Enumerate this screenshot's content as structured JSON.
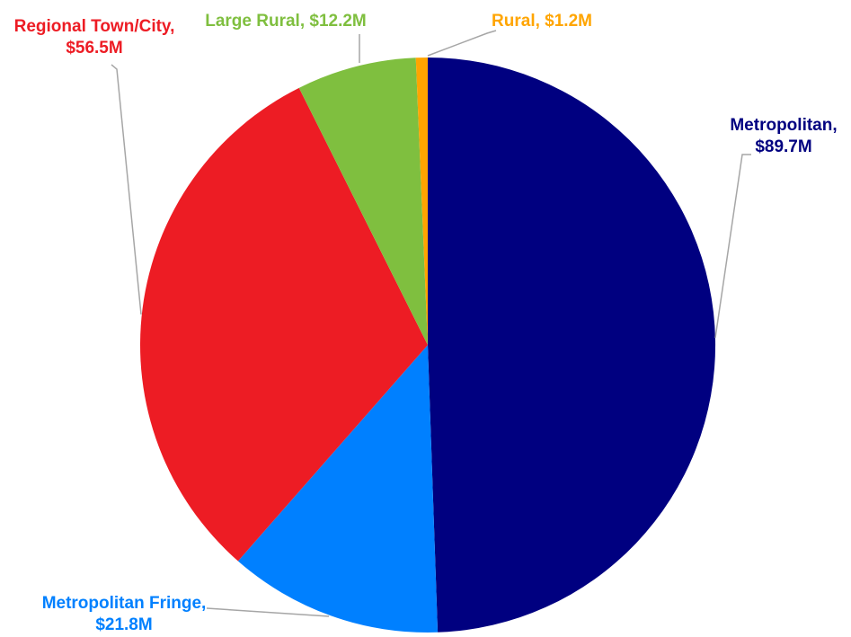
{
  "chart_data": {
    "type": "pie",
    "series": [
      {
        "categories": [
          "Metropolitan",
          "Metropolitan Fringe",
          "Regional Town/City",
          "Large Rural",
          "Rural"
        ],
        "values": [
          89.7,
          21.8,
          56.5,
          12.2,
          1.2
        ],
        "colors": [
          "#000080",
          "#0080ff",
          "#ed1c24",
          "#7fbf3f",
          "#ffa500"
        ],
        "data_labels": [
          [
            "Metropolitan,",
            "$89.7M"
          ],
          [
            "Metropolitan Fringe,",
            "$21.8M"
          ],
          [
            "Regional Town/City,",
            "$56.5M"
          ],
          [
            "Large Rural, $12.2M"
          ],
          [
            "Rural, $1.2M"
          ]
        ]
      }
    ],
    "start_angle_deg": 0,
    "direction": "clockwise",
    "legend": "none",
    "leader_lines": true
  }
}
